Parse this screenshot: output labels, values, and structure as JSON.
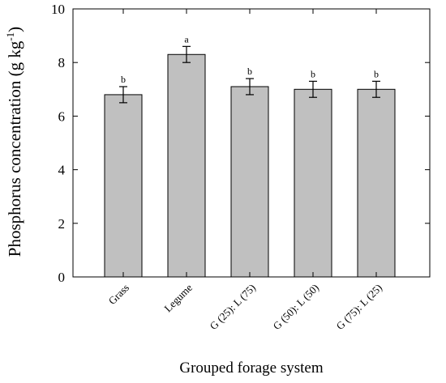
{
  "chart_data": {
    "type": "bar",
    "title": "",
    "xlabel": "Grouped forage system",
    "ylabel_main": "Phosphorus concentration (g kg",
    "ylabel_sup": "-1",
    "ylabel_close": ")",
    "ylim": [
      0,
      10
    ],
    "yticks": [
      "0",
      "2",
      "4",
      "6",
      "8",
      "10"
    ],
    "grid": false,
    "categories": [
      "Grass",
      "Legume",
      "G (25): L (75)",
      "G (50): L (50)",
      "G (75): L (25)"
    ],
    "values": [
      6.8,
      8.3,
      7.1,
      7.0,
      7.0
    ],
    "error": [
      0.3,
      0.3,
      0.3,
      0.3,
      0.3
    ],
    "significance_letters": [
      "b",
      "a",
      "b",
      "b",
      "b"
    ],
    "bar_color": "#c0c0c0",
    "bar_edge_color": "#000000"
  }
}
